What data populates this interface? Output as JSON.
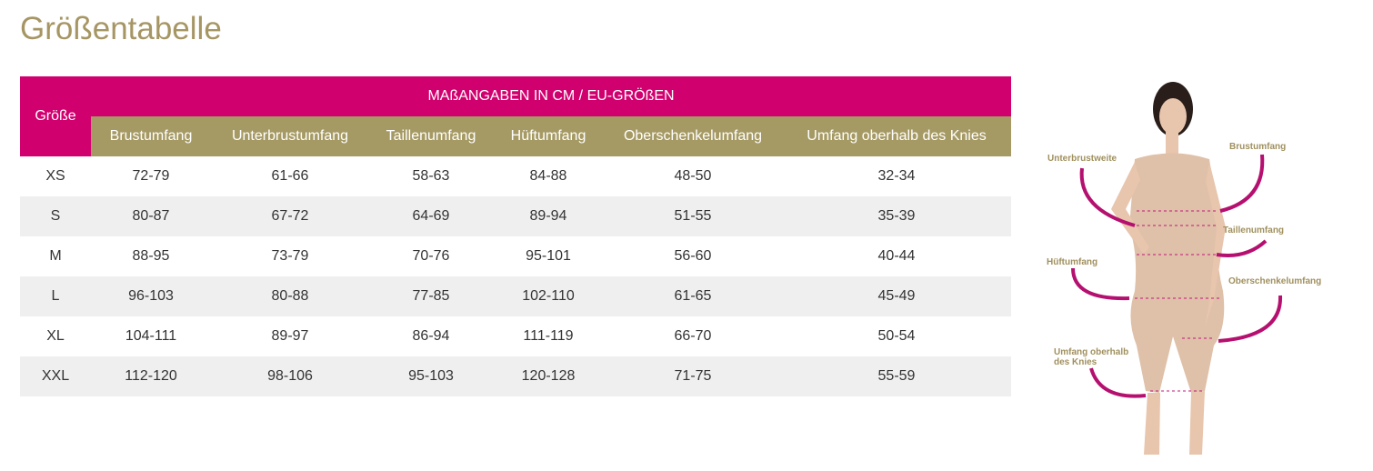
{
  "title": "Größentabelle",
  "table": {
    "corner_header": "Größe",
    "span_header": "MAßANGABEN IN CM / EU-GRÖßEN",
    "columns": [
      "Brustumfang",
      "Unterbrustumfang",
      "Taillenumfang",
      "Hüftumfang",
      "Oberschenkelumfang",
      "Umfang oberhalb des Knies"
    ],
    "rows": [
      [
        "XS",
        "72-79",
        "61-66",
        "58-63",
        "84-88",
        "48-50",
        "32-34"
      ],
      [
        "S",
        "80-87",
        "67-72",
        "64-69",
        "89-94",
        "51-55",
        "35-39"
      ],
      [
        "M",
        "88-95",
        "73-79",
        "70-76",
        "95-101",
        "56-60",
        "40-44"
      ],
      [
        "L",
        "96-103",
        "80-88",
        "77-85",
        "102-110",
        "61-65",
        "45-49"
      ],
      [
        "XL",
        "104-111",
        "89-97",
        "86-94",
        "111-119",
        "66-70",
        "50-54"
      ],
      [
        "XXL",
        "112-120",
        "98-106",
        "95-103",
        "120-128",
        "71-75",
        "55-59"
      ]
    ]
  },
  "figure": {
    "labels": [
      "Unterbrustweite",
      "Brustumfang",
      "Taillenumfang",
      "Hüftumfang",
      "Oberschenkelumfang",
      "Umfang oberhalb des Knies"
    ]
  }
}
